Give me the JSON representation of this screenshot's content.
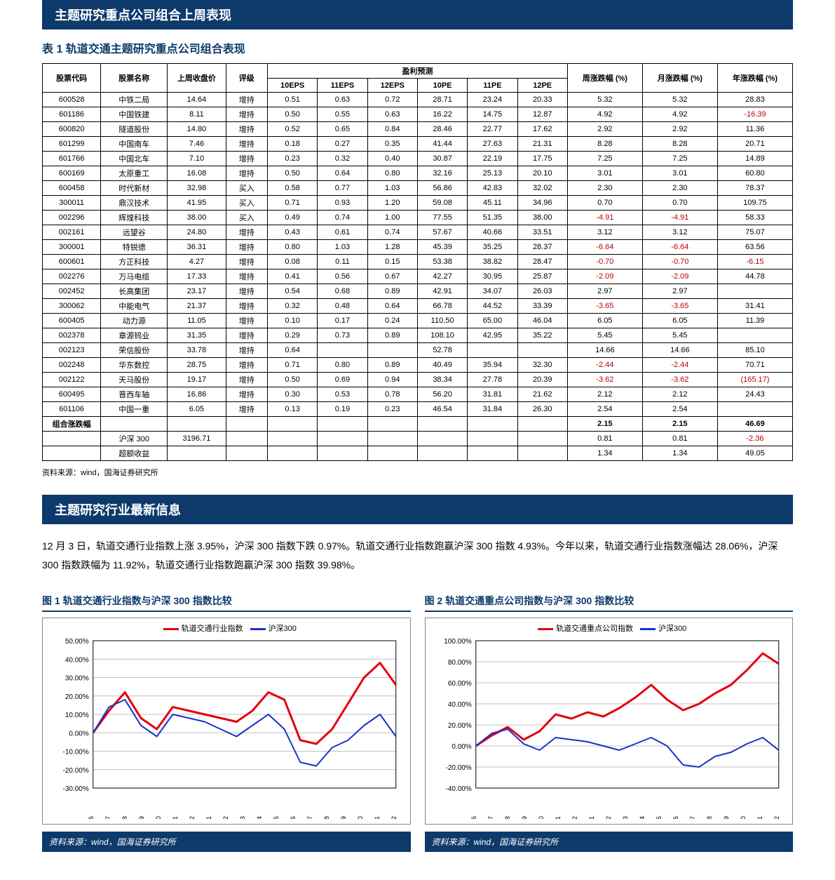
{
  "top_bar": "主题研究重点公司组合上周表现",
  "table_title": "表 1 轨道交通主题研究重点公司组合表现",
  "table": {
    "columns": [
      "股票代码",
      "股票名称",
      "上周收盘价",
      "评级",
      "10EPS",
      "11EPS",
      "12EPS",
      "10PE",
      "11PE",
      "12PE",
      "周涨跌幅 (%)",
      "月涨跌幅 (%)",
      "年涨跌幅 (%)"
    ],
    "group_header": "盈利预测",
    "rows": [
      [
        "600528",
        "中铁二局",
        "14.64",
        "增持",
        "0.51",
        "0.63",
        "0.72",
        "28.71",
        "23.24",
        "20.33",
        "5.32",
        "5.32",
        "28.83"
      ],
      [
        "601186",
        "中国铁建",
        "8.11",
        "增持",
        "0.50",
        "0.55",
        "0.63",
        "16.22",
        "14.75",
        "12.87",
        "4.92",
        "4.92",
        "-16.39"
      ],
      [
        "600820",
        "隧道股份",
        "14.80",
        "增持",
        "0.52",
        "0.65",
        "0.84",
        "28.46",
        "22.77",
        "17.62",
        "2.92",
        "2.92",
        "11.36"
      ],
      [
        "601299",
        "中国南车",
        "7.46",
        "增持",
        "0.18",
        "0.27",
        "0.35",
        "41.44",
        "27.63",
        "21.31",
        "8.28",
        "8.28",
        "20.71"
      ],
      [
        "601766",
        "中国北车",
        "7.10",
        "增持",
        "0.23",
        "0.32",
        "0.40",
        "30.87",
        "22.19",
        "17.75",
        "7.25",
        "7.25",
        "14.89"
      ],
      [
        "600169",
        "太原重工",
        "16.08",
        "增持",
        "0.50",
        "0.64",
        "0.80",
        "32.16",
        "25.13",
        "20.10",
        "3.01",
        "3.01",
        "60.80"
      ],
      [
        "600458",
        "时代新材",
        "32.98",
        "买入",
        "0.58",
        "0.77",
        "1.03",
        "56.86",
        "42.83",
        "32.02",
        "2.30",
        "2.30",
        "78.37"
      ],
      [
        "300011",
        "鼎汉技术",
        "41.95",
        "买入",
        "0.71",
        "0.93",
        "1.20",
        "59.08",
        "45.11",
        "34.96",
        "0.70",
        "0.70",
        "109.75"
      ],
      [
        "002296",
        "辉煌科技",
        "38.00",
        "买入",
        "0.49",
        "0.74",
        "1.00",
        "77.55",
        "51.35",
        "38.00",
        "-4.91",
        "-4.91",
        "58.33"
      ],
      [
        "002161",
        "远望谷",
        "24.80",
        "增持",
        "0.43",
        "0.61",
        "0.74",
        "57.67",
        "40.66",
        "33.51",
        "3.12",
        "3.12",
        "75.07"
      ],
      [
        "300001",
        "特锐德",
        "36.31",
        "增持",
        "0.80",
        "1.03",
        "1.28",
        "45.39",
        "35.25",
        "28.37",
        "-6.64",
        "-6.64",
        "63.56"
      ],
      [
        "600601",
        "方正科技",
        "4.27",
        "增持",
        "0.08",
        "0.11",
        "0.15",
        "53.38",
        "38.82",
        "28.47",
        "-0.70",
        "-0.70",
        "-6.15"
      ],
      [
        "002276",
        "万马电缆",
        "17.33",
        "增持",
        "0.41",
        "0.56",
        "0.67",
        "42.27",
        "30.95",
        "25.87",
        "-2.09",
        "-2.09",
        "44.78"
      ],
      [
        "002452",
        "长高集团",
        "23.17",
        "增持",
        "0.54",
        "0.68",
        "0.89",
        "42.91",
        "34.07",
        "26.03",
        "2.97",
        "2.97",
        ""
      ],
      [
        "300062",
        "中能电气",
        "21.37",
        "增持",
        "0.32",
        "0.48",
        "0.64",
        "66.78",
        "44.52",
        "33.39",
        "-3.65",
        "-3.65",
        "31.41"
      ],
      [
        "600405",
        "动力源",
        "11.05",
        "增持",
        "0.10",
        "0.17",
        "0.24",
        "110.50",
        "65.00",
        "46.04",
        "6.05",
        "6.05",
        "11.39"
      ],
      [
        "002378",
        "章源钨业",
        "31.35",
        "增持",
        "0.29",
        "0.73",
        "0.89",
        "108.10",
        "42.95",
        "35.22",
        "5.45",
        "5.45",
        ""
      ],
      [
        "002123",
        "荣信股份",
        "33.78",
        "增持",
        "0.64",
        "",
        "",
        "52.78",
        "",
        "",
        "14.66",
        "14.66",
        "85.10"
      ],
      [
        "002248",
        "华东数控",
        "28.75",
        "增持",
        "0.71",
        "0.80",
        "0.89",
        "40.49",
        "35.94",
        "32.30",
        "-2.44",
        "-2.44",
        "70.71"
      ],
      [
        "002122",
        "天马股份",
        "19.17",
        "增持",
        "0.50",
        "0.69",
        "0.94",
        "38.34",
        "27.78",
        "20.39",
        "-3.62",
        "-3.62",
        "(165.17)"
      ],
      [
        "600495",
        "晋西车轴",
        "16.86",
        "增持",
        "0.30",
        "0.53",
        "0.78",
        "56.20",
        "31.81",
        "21.62",
        "2.12",
        "2.12",
        "24.43"
      ],
      [
        "601106",
        "中国一重",
        "6.05",
        "增持",
        "0.13",
        "0.19",
        "0.23",
        "46.54",
        "31.84",
        "26.30",
        "2.54",
        "2.54",
        ""
      ]
    ],
    "summary": [
      "组合涨跌幅",
      "",
      "",
      "",
      "",
      "",
      "",
      "",
      "",
      "",
      "2.15",
      "2.15",
      "46.69"
    ],
    "benchmarks": [
      [
        "",
        "沪深 300",
        "3196.71",
        "",
        "",
        "",
        "",
        "",
        "",
        "",
        "0.81",
        "0.81",
        "-2.36"
      ],
      [
        "",
        "超额收益",
        "",
        "",
        "",
        "",
        "",
        "",
        "",
        "",
        "1.34",
        "1.34",
        "49.05"
      ]
    ],
    "source": "资料来源：wind，国海证券研究所"
  },
  "section2_bar": "主题研究行业最新信息",
  "paragraph": "12 月 3 日，轨道交通行业指数上涨 3.95%，沪深 300 指数下跌 0.97%。轨道交通行业指数跑赢沪深 300 指数 4.93%。今年以来，轨道交通行业指数涨幅达 28.06%，沪深 300 指数跌幅为 11.92%，轨道交通行业指数跑赢沪深 300 指数 39.98%。",
  "chart1": {
    "title": "图 1 轨道交通行业指数与沪深 300 指数比较",
    "legend": [
      {
        "label": "轨道交通行业指数",
        "color": "#e3000f"
      },
      {
        "label": "沪深300",
        "color": "#1832c9"
      }
    ],
    "ylim": [
      -30,
      50
    ],
    "ytick_step": 10,
    "ytick_format": "pct1",
    "xticks": [
      "09-06",
      "09-07",
      "09-08",
      "09-09",
      "09-10",
      "09-11",
      "09-12",
      "10-01",
      "10-02",
      "10-03",
      "10-04",
      "10-05",
      "10-06",
      "10-07",
      "10-08",
      "10-09",
      "10-10",
      "10-11",
      "10-12"
    ],
    "series": [
      {
        "color": "#e3000f",
        "width": 3,
        "values": [
          0,
          12,
          22,
          8,
          2,
          14,
          12,
          10,
          8,
          6,
          12,
          22,
          18,
          -4,
          -6,
          2,
          16,
          30,
          38,
          26
        ]
      },
      {
        "color": "#1832c9",
        "width": 2,
        "values": [
          0,
          14,
          18,
          4,
          -2,
          10,
          8,
          6,
          2,
          -2,
          4,
          10,
          2,
          -16,
          -18,
          -8,
          -4,
          4,
          10,
          -2
        ]
      }
    ],
    "bg": "#ffffff",
    "grid": "#c0c0c0",
    "source": "资料来源：wind，国海证券研究所"
  },
  "chart2": {
    "title": "图 2 轨道交通重点公司指数与沪深 300 指数比较",
    "legend": [
      {
        "label": "轨道交通重点公司指数",
        "color": "#e3000f"
      },
      {
        "label": "沪深300",
        "color": "#1832c9"
      }
    ],
    "ylim": [
      -40,
      100
    ],
    "ytick_step": 20,
    "ytick_format": "pct1",
    "xticks": [
      "09-06",
      "09-07",
      "09-08",
      "09-09",
      "09-10",
      "09-11",
      "09-12",
      "10-01",
      "10-02",
      "10-03",
      "10-04",
      "10-05",
      "10-06",
      "10-07",
      "10-08",
      "10-09",
      "10-10",
      "10-11",
      "10-12"
    ],
    "series": [
      {
        "color": "#e3000f",
        "width": 3,
        "values": [
          0,
          10,
          18,
          6,
          14,
          30,
          26,
          32,
          28,
          36,
          46,
          58,
          44,
          34,
          40,
          50,
          58,
          72,
          88,
          78
        ]
      },
      {
        "color": "#1832c9",
        "width": 2,
        "values": [
          0,
          12,
          16,
          2,
          -4,
          8,
          6,
          4,
          0,
          -4,
          2,
          8,
          0,
          -18,
          -20,
          -10,
          -6,
          2,
          8,
          -4
        ]
      }
    ],
    "bg": "#ffffff",
    "grid": "#c0c0c0",
    "source": "资料来源：wind，国海证券研究所"
  }
}
